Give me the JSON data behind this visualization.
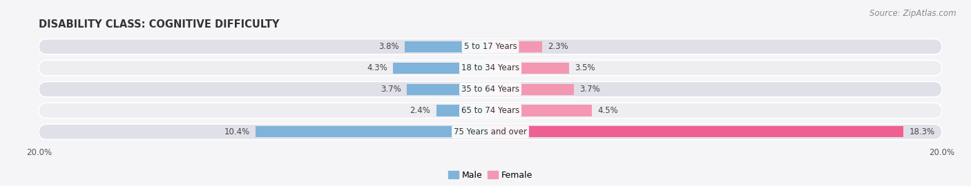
{
  "title": "DISABILITY CLASS: COGNITIVE DIFFICULTY",
  "source": "Source: ZipAtlas.com",
  "categories": [
    "5 to 17 Years",
    "18 to 34 Years",
    "35 to 64 Years",
    "65 to 74 Years",
    "75 Years and over"
  ],
  "male_values": [
    3.8,
    4.3,
    3.7,
    2.4,
    10.4
  ],
  "female_values": [
    2.3,
    3.5,
    3.7,
    4.5,
    18.3
  ],
  "max_val": 20.0,
  "male_color": "#7fb3d9",
  "female_color": "#f497b2",
  "female_last_color": "#ef6090",
  "row_bg_light": "#ededf2",
  "row_bg_dark": "#e0e0e8",
  "label_color": "#444444",
  "value_color": "#444444",
  "title_fontsize": 10.5,
  "source_fontsize": 8.5,
  "label_fontsize": 8.5,
  "axis_label_fontsize": 8.5,
  "legend_fontsize": 9
}
